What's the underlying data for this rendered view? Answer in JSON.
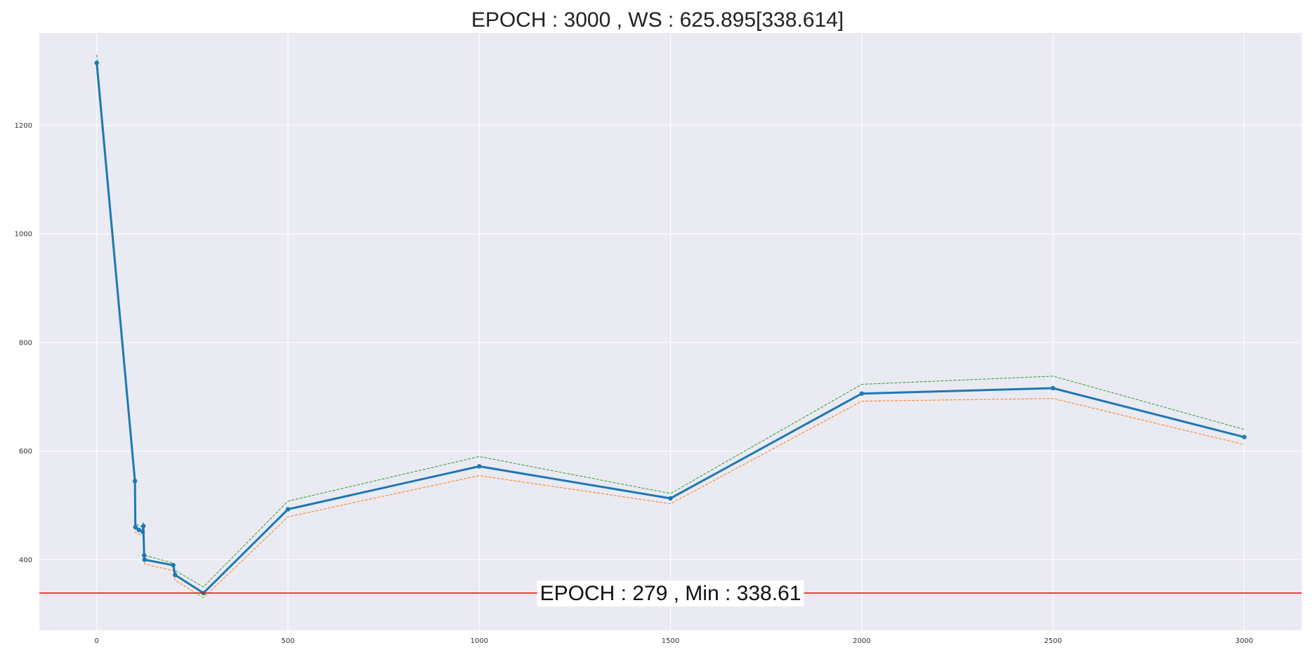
{
  "chart_data": {
    "type": "line",
    "title": "EPOCH : 3000 , WS : 625.895[338.614]",
    "xlabel": "",
    "ylabel": "",
    "xlim": [
      -150,
      3150
    ],
    "ylim": [
      270,
      1370
    ],
    "x_ticks": [
      0,
      500,
      1000,
      1500,
      2000,
      2500,
      3000
    ],
    "y_ticks": [
      400,
      600,
      800,
      1000,
      1200
    ],
    "grid": true,
    "background": "#eaeaf2",
    "series": [
      {
        "role": "main",
        "color": "#1f77b4",
        "style": "solid-with-markers",
        "x": [
          0,
          100,
          101,
          110,
          120,
          122,
          124,
          125,
          200,
          205,
          279,
          500,
          1000,
          1500,
          2000,
          2500,
          3000
        ],
        "y": [
          1315,
          545,
          460,
          455,
          452,
          462,
          408,
          400,
          390,
          372,
          338.614,
          493,
          572,
          513,
          706,
          716,
          625.895
        ]
      },
      {
        "role": "upper",
        "color": "#2ca02c",
        "style": "dashed",
        "x": [
          0,
          100,
          101,
          110,
          120,
          122,
          124,
          125,
          200,
          205,
          279,
          500,
          1000,
          1500,
          2000,
          2500,
          3000
        ],
        "y": [
          1330,
          555,
          468,
          462,
          460,
          470,
          412,
          408,
          394,
          380,
          350,
          508,
          590,
          522,
          723,
          738,
          640
        ]
      },
      {
        "role": "lower",
        "color": "#ff7f0e",
        "style": "dashed",
        "x": [
          0,
          100,
          101,
          110,
          120,
          122,
          124,
          125,
          200,
          205,
          279,
          500,
          1000,
          1500,
          2000,
          2500,
          3000
        ],
        "y": [
          1310,
          535,
          450,
          447,
          445,
          450,
          398,
          392,
          380,
          362,
          330,
          479,
          555,
          503,
          692,
          697,
          612
        ]
      }
    ],
    "hline": {
      "y": 338.614,
      "color": "#ff0000"
    },
    "annotation": {
      "text": "EPOCH : 279 , Min : 338.61",
      "x": 1500,
      "y": 338.614
    }
  }
}
